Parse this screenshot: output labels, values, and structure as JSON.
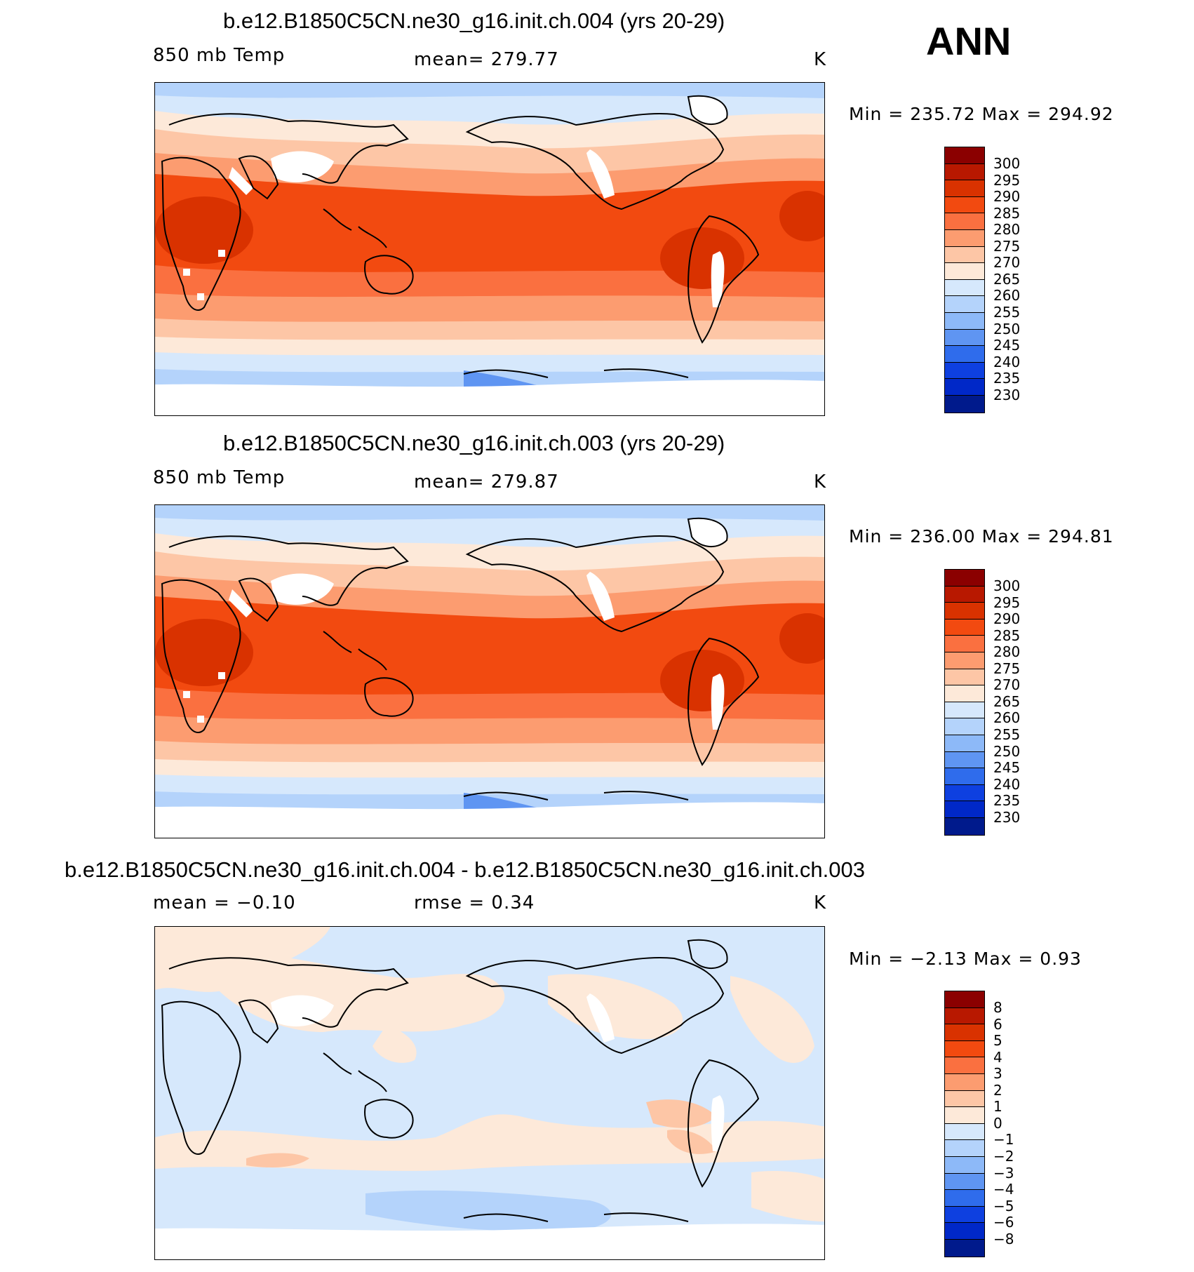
{
  "season": "ANN",
  "panels": [
    {
      "title": "b.e12.B1850C5CN.ne30_g16.init.ch.004 (yrs 20-29)",
      "variable": "850 mb Temp",
      "stat_text": "mean=  279.77",
      "units": "K",
      "minmax": "Min  =  235.72  Max  =  294.92",
      "colorbar_labels": [
        "300",
        "295",
        "290",
        "285",
        "280",
        "275",
        "270",
        "265",
        "260",
        "255",
        "250",
        "245",
        "240",
        "235",
        "230"
      ],
      "colors": [
        "#8b0000",
        "#b81800",
        "#d93200",
        "#f24a10",
        "#fa7040",
        "#fc9c70",
        "#fdc6a6",
        "#fde9d9",
        "#d6e8fc",
        "#b4d3fb",
        "#8db9f8",
        "#5f95f2",
        "#2f6cec",
        "#0e40e0",
        "#0028c8",
        "#001a8c"
      ]
    },
    {
      "title": "b.e12.B1850C5CN.ne30_g16.init.ch.003 (yrs 20-29)",
      "variable": "850 mb Temp",
      "stat_text": "mean=  279.87",
      "units": "K",
      "minmax": "Min  =  236.00  Max  =  294.81",
      "colorbar_labels": [
        "300",
        "295",
        "290",
        "285",
        "280",
        "275",
        "270",
        "265",
        "260",
        "255",
        "250",
        "245",
        "240",
        "235",
        "230"
      ],
      "colors": [
        "#8b0000",
        "#b81800",
        "#d93200",
        "#f24a10",
        "#fa7040",
        "#fc9c70",
        "#fdc6a6",
        "#fde9d9",
        "#d6e8fc",
        "#b4d3fb",
        "#8db9f8",
        "#5f95f2",
        "#2f6cec",
        "#0e40e0",
        "#0028c8",
        "#001a8c"
      ]
    },
    {
      "title": "b.e12.B1850C5CN.ne30_g16.init.ch.004 - b.e12.B1850C5CN.ne30_g16.init.ch.003",
      "variable": "mean  =    −0.10",
      "stat_text": "rmse  =     0.34",
      "units": "K",
      "minmax": "Min  =    −2.13  Max  =     0.93",
      "colorbar_labels": [
        "8",
        "6",
        "5",
        "4",
        "3",
        "2",
        "1",
        "0",
        "−1",
        "−2",
        "−3",
        "−4",
        "−5",
        "−6",
        "−8"
      ],
      "colors": [
        "#8b0000",
        "#b81800",
        "#d93200",
        "#f24a10",
        "#fa7040",
        "#fc9c70",
        "#fdc6a6",
        "#fde9d9",
        "#d6e8fc",
        "#b4d3fb",
        "#8db9f8",
        "#5f95f2",
        "#2f6cec",
        "#0e40e0",
        "#0028c8",
        "#001a8c"
      ]
    }
  ]
}
